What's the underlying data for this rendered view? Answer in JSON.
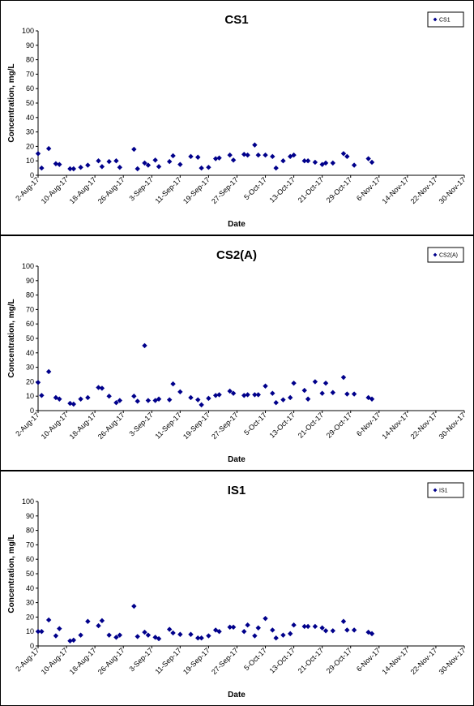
{
  "chart_data": [
    {
      "type": "scatter",
      "title": "CS1",
      "xlabel": "Date",
      "ylabel": "Concentration, mg/L",
      "ylim": [
        0,
        100
      ],
      "yticks": [
        0,
        10,
        20,
        30,
        40,
        50,
        60,
        70,
        80,
        90,
        100
      ],
      "xlim": [
        "2017-08-02",
        "2017-11-30"
      ],
      "xtick_labels": [
        "2-Aug-17",
        "10-Aug-17",
        "18-Aug-17",
        "26-Aug-17",
        "3-Sep-17",
        "11-Sep-17",
        "19-Sep-17",
        "27-Sep-17",
        "5-Oct-17",
        "13-Oct-17",
        "21-Oct-17",
        "29-Oct-17",
        "6-Nov-17",
        "14-Nov-17",
        "22-Nov-17",
        "30-Nov-17"
      ],
      "legend": "top-right",
      "grid": false,
      "marker": "diamond",
      "color": "#00008B",
      "series": [
        {
          "name": "CS1",
          "points": [
            {
              "x": "2017-08-02",
              "y": 15
            },
            {
              "x": "2017-08-03",
              "y": 5
            },
            {
              "x": "2017-08-05",
              "y": 18.5
            },
            {
              "x": "2017-08-07",
              "y": 8
            },
            {
              "x": "2017-08-08",
              "y": 7.5
            },
            {
              "x": "2017-08-11",
              "y": 4.5
            },
            {
              "x": "2017-08-12",
              "y": 4.5
            },
            {
              "x": "2017-08-14",
              "y": 5.5
            },
            {
              "x": "2017-08-16",
              "y": 7
            },
            {
              "x": "2017-08-19",
              "y": 10
            },
            {
              "x": "2017-08-20",
              "y": 6
            },
            {
              "x": "2017-08-22",
              "y": 9.5
            },
            {
              "x": "2017-08-24",
              "y": 10
            },
            {
              "x": "2017-08-25",
              "y": 5.5
            },
            {
              "x": "2017-08-29",
              "y": 18
            },
            {
              "x": "2017-08-30",
              "y": 4.5
            },
            {
              "x": "2017-09-01",
              "y": 8.5
            },
            {
              "x": "2017-09-02",
              "y": 7
            },
            {
              "x": "2017-09-04",
              "y": 10.5
            },
            {
              "x": "2017-09-05",
              "y": 6
            },
            {
              "x": "2017-09-08",
              "y": 9.5
            },
            {
              "x": "2017-09-09",
              "y": 13.5
            },
            {
              "x": "2017-09-11",
              "y": 7.5
            },
            {
              "x": "2017-09-14",
              "y": 13
            },
            {
              "x": "2017-09-16",
              "y": 12.5
            },
            {
              "x": "2017-09-17",
              "y": 5
            },
            {
              "x": "2017-09-19",
              "y": 5.5
            },
            {
              "x": "2017-09-21",
              "y": 11.5
            },
            {
              "x": "2017-09-22",
              "y": 12
            },
            {
              "x": "2017-09-25",
              "y": 14
            },
            {
              "x": "2017-09-26",
              "y": 10.5
            },
            {
              "x": "2017-09-29",
              "y": 14.5
            },
            {
              "x": "2017-09-30",
              "y": 14
            },
            {
              "x": "2017-10-02",
              "y": 21
            },
            {
              "x": "2017-10-03",
              "y": 14
            },
            {
              "x": "2017-10-05",
              "y": 14
            },
            {
              "x": "2017-10-07",
              "y": 13
            },
            {
              "x": "2017-10-08",
              "y": 5
            },
            {
              "x": "2017-10-10",
              "y": 10
            },
            {
              "x": "2017-10-12",
              "y": 13
            },
            {
              "x": "2017-10-13",
              "y": 14
            },
            {
              "x": "2017-10-16",
              "y": 10
            },
            {
              "x": "2017-10-17",
              "y": 10
            },
            {
              "x": "2017-10-19",
              "y": 9
            },
            {
              "x": "2017-10-21",
              "y": 7.5
            },
            {
              "x": "2017-10-22",
              "y": 8.5
            },
            {
              "x": "2017-10-24",
              "y": 8.5
            },
            {
              "x": "2017-10-27",
              "y": 15
            },
            {
              "x": "2017-10-28",
              "y": 13
            },
            {
              "x": "2017-10-30",
              "y": 7
            },
            {
              "x": "2017-11-03",
              "y": 11.5
            },
            {
              "x": "2017-11-04",
              "y": 9
            }
          ]
        }
      ]
    },
    {
      "type": "scatter",
      "title": "CS2(A)",
      "xlabel": "Date",
      "ylabel": "Concentration, mg/L",
      "ylim": [
        0,
        100
      ],
      "yticks": [
        0,
        10,
        20,
        30,
        40,
        50,
        60,
        70,
        80,
        90,
        100
      ],
      "xlim": [
        "2017-08-02",
        "2017-11-30"
      ],
      "xtick_labels": [
        "2-Aug-17",
        "10-Aug-17",
        "18-Aug-17",
        "26-Aug-17",
        "3-Sep-17",
        "11-Sep-17",
        "19-Sep-17",
        "27-Sep-17",
        "5-Oct-17",
        "13-Oct-17",
        "21-Oct-17",
        "29-Oct-17",
        "6-Nov-17",
        "14-Nov-17",
        "22-Nov-17",
        "30-Nov-17"
      ],
      "legend": "top-right",
      "grid": false,
      "marker": "diamond",
      "color": "#00008B",
      "series": [
        {
          "name": "CS2(A)",
          "points": [
            {
              "x": "2017-08-02",
              "y": 19.5
            },
            {
              "x": "2017-08-03",
              "y": 10.5
            },
            {
              "x": "2017-08-05",
              "y": 27
            },
            {
              "x": "2017-08-07",
              "y": 9
            },
            {
              "x": "2017-08-08",
              "y": 8
            },
            {
              "x": "2017-08-11",
              "y": 5
            },
            {
              "x": "2017-08-12",
              "y": 4.5
            },
            {
              "x": "2017-08-14",
              "y": 8
            },
            {
              "x": "2017-08-16",
              "y": 9
            },
            {
              "x": "2017-08-19",
              "y": 16
            },
            {
              "x": "2017-08-20",
              "y": 15.5
            },
            {
              "x": "2017-08-22",
              "y": 10
            },
            {
              "x": "2017-08-24",
              "y": 5.5
            },
            {
              "x": "2017-08-25",
              "y": 7
            },
            {
              "x": "2017-08-29",
              "y": 10
            },
            {
              "x": "2017-08-30",
              "y": 6.5
            },
            {
              "x": "2017-09-01",
              "y": 45
            },
            {
              "x": "2017-09-02",
              "y": 7
            },
            {
              "x": "2017-09-04",
              "y": 7
            },
            {
              "x": "2017-09-05",
              "y": 8
            },
            {
              "x": "2017-09-08",
              "y": 7.5
            },
            {
              "x": "2017-09-09",
              "y": 18.5
            },
            {
              "x": "2017-09-11",
              "y": 13
            },
            {
              "x": "2017-09-14",
              "y": 9
            },
            {
              "x": "2017-09-16",
              "y": 7.5
            },
            {
              "x": "2017-09-17",
              "y": 4
            },
            {
              "x": "2017-09-19",
              "y": 8.5
            },
            {
              "x": "2017-09-21",
              "y": 10.5
            },
            {
              "x": "2017-09-22",
              "y": 11
            },
            {
              "x": "2017-09-25",
              "y": 13.5
            },
            {
              "x": "2017-09-26",
              "y": 12
            },
            {
              "x": "2017-09-29",
              "y": 10.5
            },
            {
              "x": "2017-09-30",
              "y": 11
            },
            {
              "x": "2017-10-02",
              "y": 11
            },
            {
              "x": "2017-10-03",
              "y": 11
            },
            {
              "x": "2017-10-05",
              "y": 17
            },
            {
              "x": "2017-10-07",
              "y": 12
            },
            {
              "x": "2017-10-08",
              "y": 5.5
            },
            {
              "x": "2017-10-10",
              "y": 7.5
            },
            {
              "x": "2017-10-12",
              "y": 9
            },
            {
              "x": "2017-10-13",
              "y": 19
            },
            {
              "x": "2017-10-16",
              "y": 14
            },
            {
              "x": "2017-10-17",
              "y": 8
            },
            {
              "x": "2017-10-19",
              "y": 20
            },
            {
              "x": "2017-10-21",
              "y": 12
            },
            {
              "x": "2017-10-22",
              "y": 19
            },
            {
              "x": "2017-10-24",
              "y": 12.5
            },
            {
              "x": "2017-10-27",
              "y": 23
            },
            {
              "x": "2017-10-28",
              "y": 11.5
            },
            {
              "x": "2017-10-30",
              "y": 11.5
            },
            {
              "x": "2017-11-03",
              "y": 9
            },
            {
              "x": "2017-11-04",
              "y": 8
            }
          ]
        }
      ]
    },
    {
      "type": "scatter",
      "title": "IS1",
      "xlabel": "Date",
      "ylabel": "Concentration, mg/L",
      "ylim": [
        0,
        100
      ],
      "yticks": [
        0,
        10,
        20,
        30,
        40,
        50,
        60,
        70,
        80,
        90,
        100
      ],
      "xlim": [
        "2017-08-02",
        "2017-11-30"
      ],
      "xtick_labels": [
        "2-Aug-17",
        "10-Aug-17",
        "18-Aug-17",
        "26-Aug-17",
        "3-Sep-17",
        "11-Sep-17",
        "19-Sep-17",
        "27-Sep-17",
        "5-Oct-17",
        "13-Oct-17",
        "21-Oct-17",
        "29-Oct-17",
        "6-Nov-17",
        "14-Nov-17",
        "22-Nov-17",
        "30-Nov-17"
      ],
      "legend": "top-right",
      "grid": false,
      "marker": "diamond",
      "color": "#00008B",
      "series": [
        {
          "name": "IS1",
          "points": [
            {
              "x": "2017-08-02",
              "y": 10
            },
            {
              "x": "2017-08-03",
              "y": 10
            },
            {
              "x": "2017-08-05",
              "y": 18
            },
            {
              "x": "2017-08-07",
              "y": 7
            },
            {
              "x": "2017-08-08",
              "y": 12
            },
            {
              "x": "2017-08-11",
              "y": 3.5
            },
            {
              "x": "2017-08-12",
              "y": 4
            },
            {
              "x": "2017-08-14",
              "y": 7.5
            },
            {
              "x": "2017-08-16",
              "y": 17
            },
            {
              "x": "2017-08-19",
              "y": 14
            },
            {
              "x": "2017-08-20",
              "y": 17.5
            },
            {
              "x": "2017-08-22",
              "y": 7.5
            },
            {
              "x": "2017-08-24",
              "y": 6
            },
            {
              "x": "2017-08-25",
              "y": 7.5
            },
            {
              "x": "2017-08-29",
              "y": 27.5
            },
            {
              "x": "2017-08-30",
              "y": 6.5
            },
            {
              "x": "2017-09-01",
              "y": 9.5
            },
            {
              "x": "2017-09-02",
              "y": 7.5
            },
            {
              "x": "2017-09-04",
              "y": 6
            },
            {
              "x": "2017-09-05",
              "y": 5
            },
            {
              "x": "2017-09-08",
              "y": 11.5
            },
            {
              "x": "2017-09-09",
              "y": 9
            },
            {
              "x": "2017-09-11",
              "y": 8
            },
            {
              "x": "2017-09-14",
              "y": 8
            },
            {
              "x": "2017-09-16",
              "y": 5.5
            },
            {
              "x": "2017-09-17",
              "y": 5.5
            },
            {
              "x": "2017-09-19",
              "y": 7
            },
            {
              "x": "2017-09-21",
              "y": 11
            },
            {
              "x": "2017-09-22",
              "y": 10
            },
            {
              "x": "2017-09-25",
              "y": 13
            },
            {
              "x": "2017-09-26",
              "y": 13
            },
            {
              "x": "2017-09-29",
              "y": 10
            },
            {
              "x": "2017-09-30",
              "y": 14.5
            },
            {
              "x": "2017-10-02",
              "y": 7
            },
            {
              "x": "2017-10-03",
              "y": 12.5
            },
            {
              "x": "2017-10-05",
              "y": 19
            },
            {
              "x": "2017-10-07",
              "y": 11
            },
            {
              "x": "2017-10-08",
              "y": 5.5
            },
            {
              "x": "2017-10-10",
              "y": 7.5
            },
            {
              "x": "2017-10-12",
              "y": 8.5
            },
            {
              "x": "2017-10-13",
              "y": 14.5
            },
            {
              "x": "2017-10-16",
              "y": 13.5
            },
            {
              "x": "2017-10-17",
              "y": 13.5
            },
            {
              "x": "2017-10-19",
              "y": 13.5
            },
            {
              "x": "2017-10-21",
              "y": 12.5
            },
            {
              "x": "2017-10-22",
              "y": 10.5
            },
            {
              "x": "2017-10-24",
              "y": 10.5
            },
            {
              "x": "2017-10-27",
              "y": 17
            },
            {
              "x": "2017-10-28",
              "y": 11
            },
            {
              "x": "2017-10-30",
              "y": 11
            },
            {
              "x": "2017-11-03",
              "y": 9.5
            },
            {
              "x": "2017-11-04",
              "y": 8.5
            }
          ]
        }
      ]
    }
  ]
}
